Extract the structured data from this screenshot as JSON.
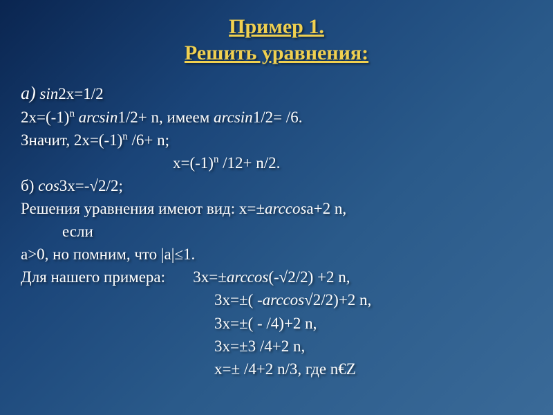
{
  "title": {
    "line1": "Пример 1.",
    "line2": "Решить уравнения:"
  },
  "lines": [
    {
      "html": "<span class='part-label'>а)</span> <span class='italic'>sin</span>2x=1/2",
      "class": ""
    },
    {
      "html": "2x=(-1)<span class='sup'>n</span> <span class='italic'>arcsin</span>1/2+ n, имеем <span class='italic'>arcsin</span>1/2= /6.",
      "class": ""
    },
    {
      "html": "Значит, 2x=(-1)<span class='sup'>n</span>  /6+ n;",
      "class": ""
    },
    {
      "html": "x=(-1)<span class='sup'>n</span>  /12+ n/2.",
      "class": "indent2"
    },
    {
      "html": "б) <span class='italic'>cos</span>3x=-√2/2;",
      "class": ""
    },
    {
      "html": "Решения уравнения имеют вид: x=±<span class='italic'>arccos</span>a+2 n,",
      "class": ""
    },
    {
      "html": "если",
      "class": "indent1"
    },
    {
      "html": "a>0, но помним, что |a|≤1.",
      "class": ""
    },
    {
      "html": "Для нашего примера: &nbsp;&nbsp;&nbsp;&nbsp;&nbsp; 3x=±<span class='italic'>arccos</span>(-√2/2) +2 n,",
      "class": ""
    },
    {
      "html": "3x=±( -<span class='italic'>arccos</span>√2/2)+2 n,",
      "class": "indent3"
    },
    {
      "html": "3x=±( - /4)+2 n,",
      "class": "indent3"
    },
    {
      "html": "3x=±3 /4+2 n,",
      "class": "indent3"
    },
    {
      "html": "x=± /4+2 n/3, где n€Z",
      "class": "indent3"
    }
  ],
  "colors": {
    "title": "#f0d050",
    "text": "#ffffff",
    "bg_start": "#0a2550",
    "bg_end": "#3a6a98"
  },
  "fonts": {
    "title_size": 30,
    "body_size": 23,
    "family": "Times New Roman"
  }
}
